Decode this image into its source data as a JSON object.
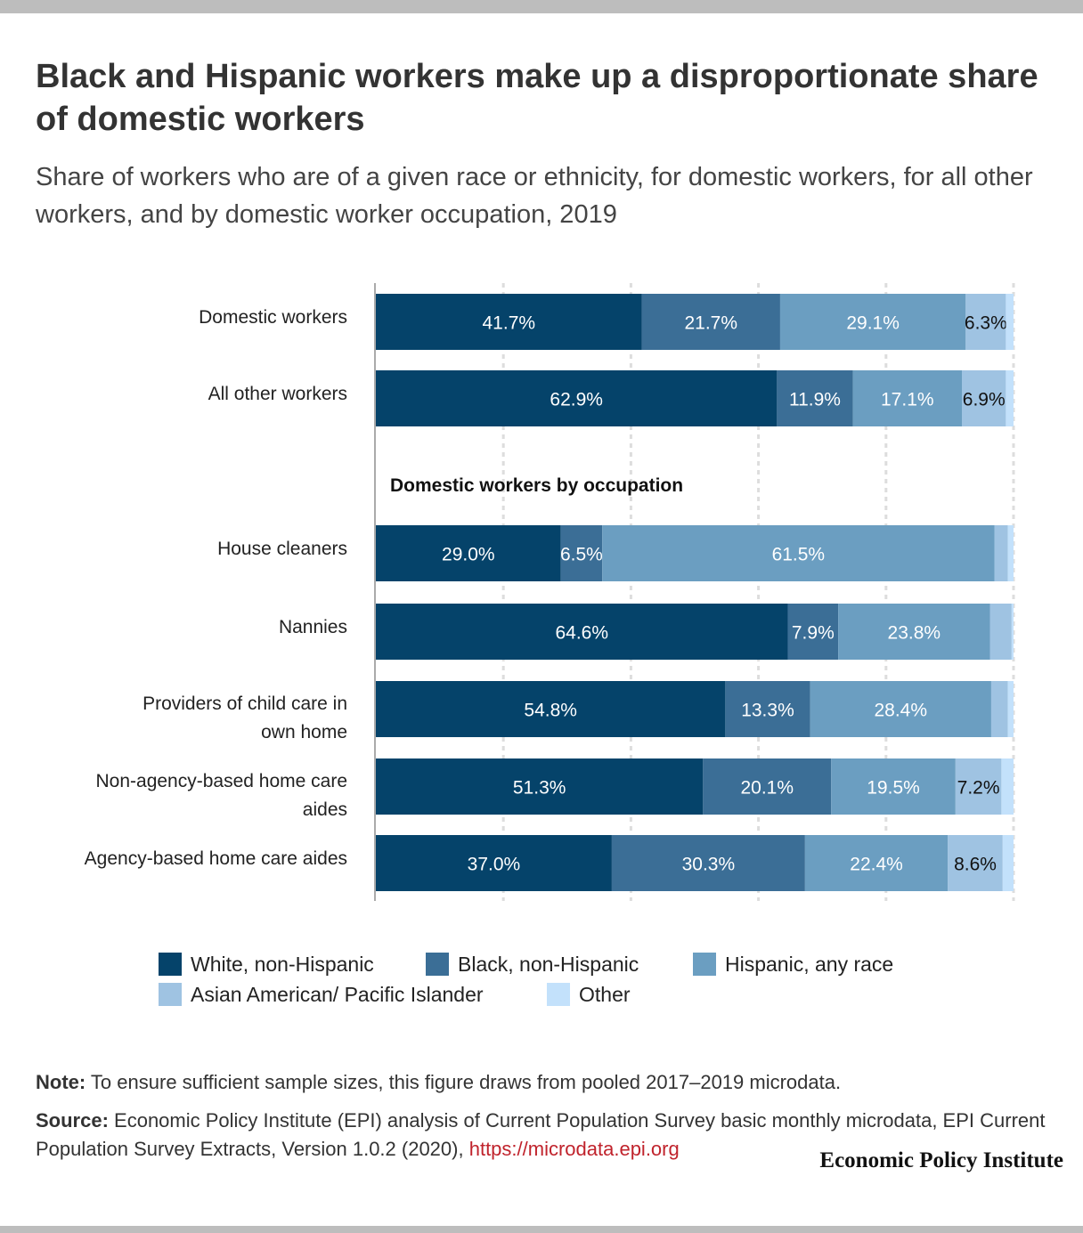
{
  "title": "Black and Hispanic workers make up a disproportionate share of domestic workers",
  "subtitle": "Share of workers who are of a given race or ethnicity, for domestic workers, for all other workers, and by domestic worker occupation, 2019",
  "colors": {
    "white": "#05436a",
    "black": "#3b6e96",
    "hispanic": "#6b9ec1",
    "asian": "#9fc3e2",
    "other": "#c3e1fb"
  },
  "chart_data": {
    "type": "bar",
    "orientation": "horizontal",
    "stacked": true,
    "xlim": [
      0,
      100
    ],
    "grid": true,
    "group_heading": "Domestic workers by occupation",
    "categories": [
      "Domestic workers",
      "All other workers",
      "House cleaners",
      "Nannies",
      "Providers of child care in own home",
      "Non-agency-based home care aides",
      "Agency-based home care aides"
    ],
    "series": [
      {
        "name": "White, non-Hispanic",
        "values": [
          41.7,
          62.9,
          29.0,
          64.6,
          54.8,
          51.3,
          37.0
        ],
        "labels": [
          "41.7%",
          "62.9%",
          "29.0%",
          "64.6%",
          "54.8%",
          "51.3%",
          "37.0%"
        ]
      },
      {
        "name": "Black, non-Hispanic",
        "values": [
          21.7,
          11.9,
          6.5,
          7.9,
          13.3,
          20.1,
          30.3
        ],
        "labels": [
          "21.7%",
          "11.9%",
          "6.5%",
          "7.9%",
          "13.3%",
          "20.1%",
          "30.3%"
        ]
      },
      {
        "name": "Hispanic, any race",
        "values": [
          29.1,
          17.1,
          61.5,
          23.8,
          28.4,
          19.5,
          22.4
        ],
        "labels": [
          "29.1%",
          "17.1%",
          "61.5%",
          "23.8%",
          "28.4%",
          "19.5%",
          "22.4%"
        ]
      },
      {
        "name": "Asian American/ Pacific Islander",
        "values": [
          6.3,
          6.9,
          2.1,
          3.4,
          2.6,
          7.2,
          8.6
        ],
        "labels": [
          "6.3%",
          "6.9%",
          "",
          "",
          "",
          "7.2%",
          "8.6%"
        ]
      },
      {
        "name": "Other",
        "values": [
          1.2,
          1.2,
          0.9,
          0.3,
          0.9,
          1.9,
          1.7
        ],
        "labels": [
          "",
          "",
          "",
          "",
          "",
          "",
          ""
        ]
      }
    ],
    "legend_position": "bottom"
  },
  "note": {
    "label": "Note:",
    "text": " To ensure sufficient sample sizes, this figure draws from pooled 2017–2019 microdata."
  },
  "source": {
    "label": "Source:",
    "text": " Economic Policy Institute (EPI) analysis of Current Population Survey basic monthly microdata, EPI Current Population Survey Extracts, Version 1.0.2 (2020), ",
    "link": "https://microdata.epi.org"
  },
  "brand": "Economic Policy Institute"
}
